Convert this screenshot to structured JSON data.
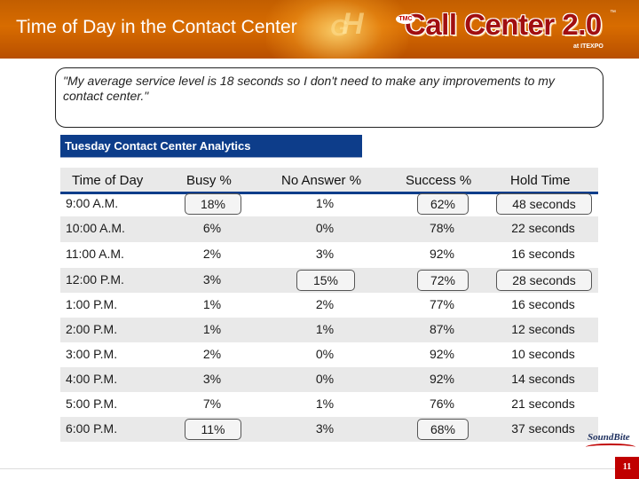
{
  "header": {
    "title": "Time of Day in the Contact Center",
    "logo_brand": "Call Center 2.0",
    "logo_prefix": "TMC",
    "logo_sub": "at ITEXPO",
    "colors": {
      "banner": "#d86c00",
      "brand_text": "#a10f10"
    }
  },
  "quote": {
    "text": "\"My average service level is 18 seconds so I don't need to make any improvements to my contact center.\""
  },
  "table": {
    "title": "Tuesday Contact Center Analytics",
    "columns": [
      "Time of Day",
      "Busy %",
      "No Answer %",
      "Success %",
      "Hold Time"
    ],
    "rows": [
      [
        "9:00 A.M.",
        "18%",
        "1%",
        "62%",
        "48 seconds"
      ],
      [
        "10:00 A.M.",
        "6%",
        "0%",
        "78%",
        "22 seconds"
      ],
      [
        "11:00 A.M.",
        "2%",
        "3%",
        "92%",
        "16 seconds"
      ],
      [
        "12:00 P.M.",
        "3%",
        "15%",
        "72%",
        "28 seconds"
      ],
      [
        "1:00 P.M.",
        "1%",
        "2%",
        "77%",
        "16 seconds"
      ],
      [
        "2:00 P.M.",
        "1%",
        "1%",
        "87%",
        "12 seconds"
      ],
      [
        "3:00 P.M.",
        "2%",
        "0%",
        "92%",
        "10 seconds"
      ],
      [
        "4:00 P.M.",
        "3%",
        "0%",
        "92%",
        "14 seconds"
      ],
      [
        "5:00 P.M.",
        "7%",
        "1%",
        "76%",
        "21 seconds"
      ],
      [
        "6:00 P.M.",
        "11%",
        "3%",
        "68%",
        "37 seconds"
      ]
    ],
    "highlighted_cells": [
      [
        0,
        1
      ],
      [
        0,
        3
      ],
      [
        0,
        4
      ],
      [
        3,
        2
      ],
      [
        3,
        3
      ],
      [
        3,
        4
      ],
      [
        9,
        1
      ],
      [
        9,
        3
      ]
    ],
    "colors": {
      "title_bar": "#0d3d8a",
      "shade": "#e9e9e9"
    }
  },
  "footer": {
    "page_number": "11",
    "sponsor_logo": "SoundBite"
  }
}
